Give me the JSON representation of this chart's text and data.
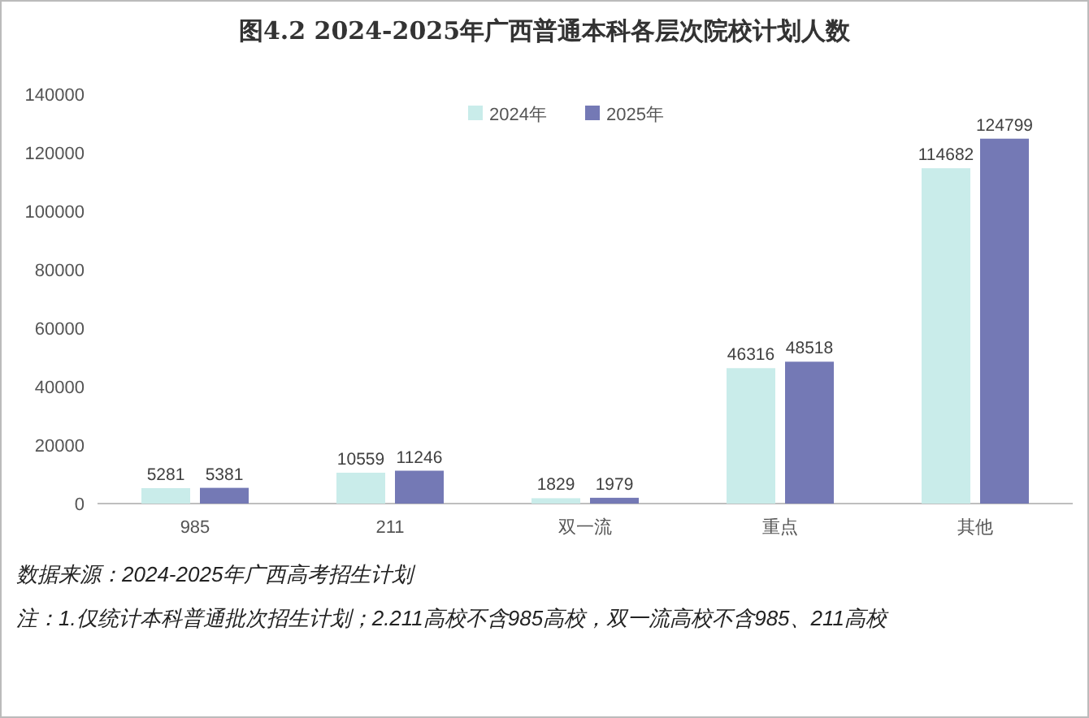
{
  "chart_data": {
    "type": "bar",
    "title": "图4.2 2024-2025年广西普通本科各层次院校计划人数",
    "categories": [
      "985",
      "211",
      "双一流",
      "重点",
      "其他"
    ],
    "series": [
      {
        "name": "2024年",
        "color": "#c9ecea",
        "values": [
          5281,
          10559,
          1829,
          46316,
          114682
        ]
      },
      {
        "name": "2025年",
        "color": "#7479b5",
        "values": [
          5381,
          11246,
          1979,
          48518,
          124799
        ]
      }
    ],
    "ylim": [
      0,
      140000
    ],
    "yticks": [
      0,
      20000,
      40000,
      60000,
      80000,
      100000,
      120000,
      140000
    ],
    "data_labels": true,
    "legend": "top",
    "annotations": [
      "数据来源：2024-2025年广西高考招生计划",
      "注：1.仅统计本科普通批次招生计划；2.211高校不含985高校，双一流高校不含985、211高校"
    ]
  }
}
